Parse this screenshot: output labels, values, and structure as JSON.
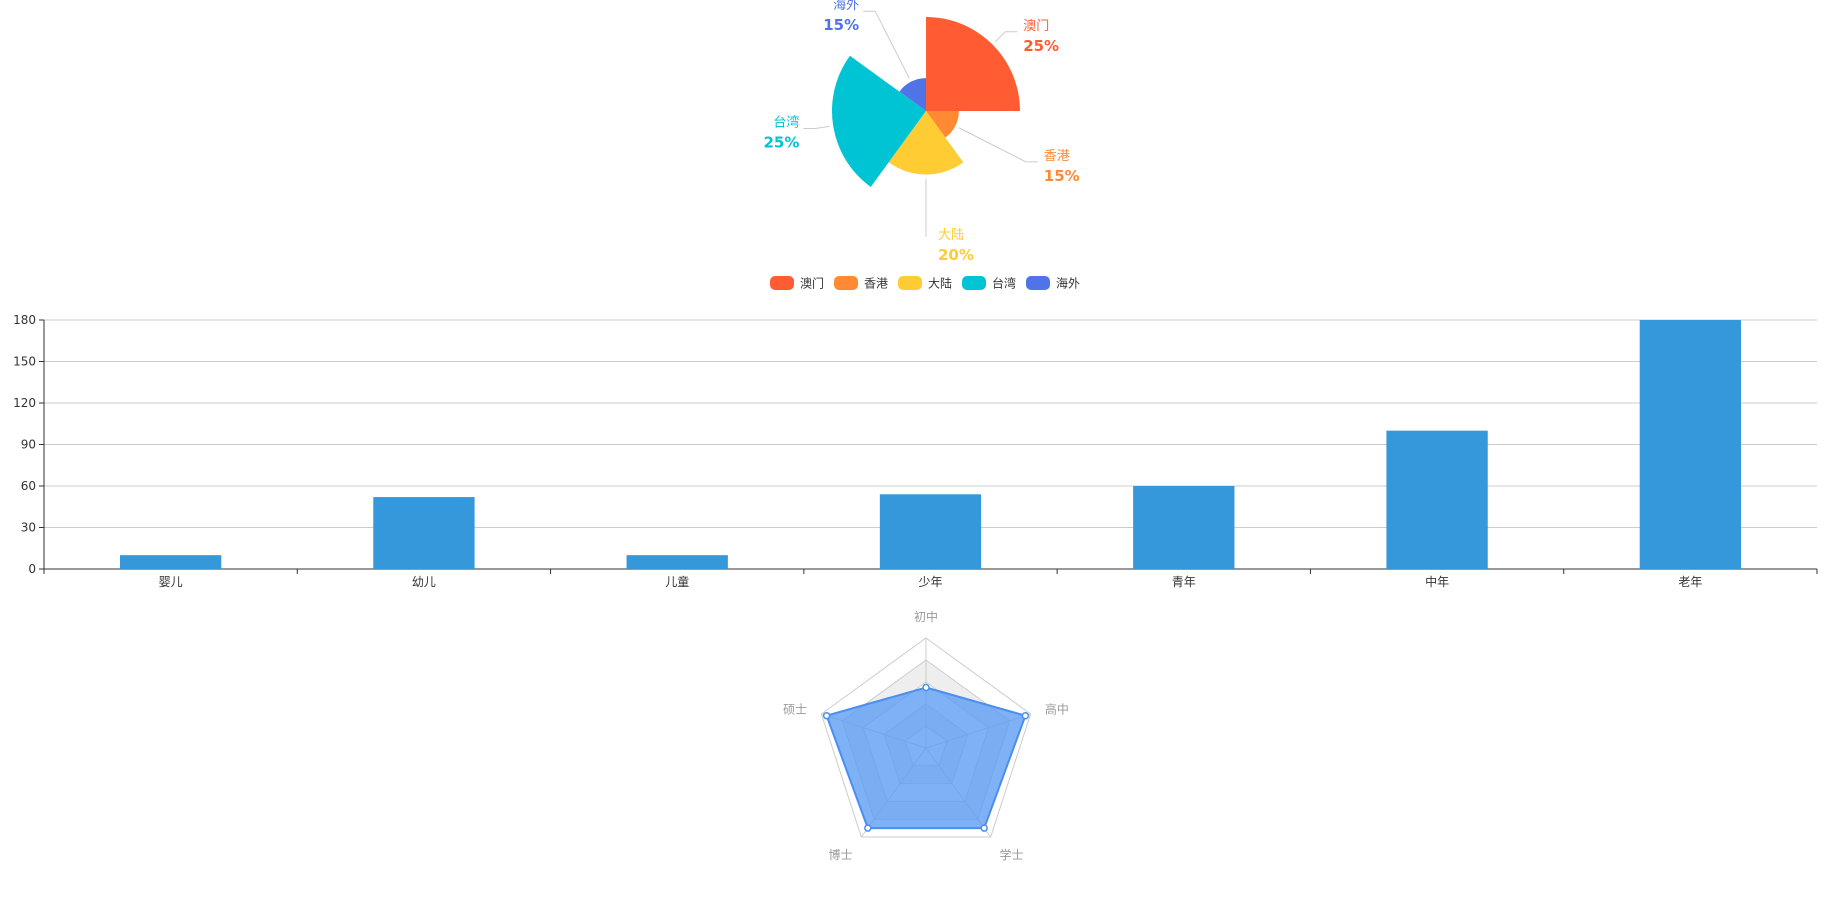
{
  "chart_data": [
    {
      "type": "pie",
      "variant": "rose",
      "legend_placement": "bottom",
      "slices": [
        {
          "name": "澳门",
          "value": 25,
          "label": "25%",
          "color": "#ff5c33"
        },
        {
          "name": "香港",
          "value": 15,
          "label": "15%",
          "color": "#ff8a33"
        },
        {
          "name": "大陆",
          "value": 20,
          "label": "20%",
          "color": "#ffcc33"
        },
        {
          "name": "台湾",
          "value": 25,
          "label": "25%",
          "color": "#00c4d4"
        },
        {
          "name": "海外",
          "value": 15,
          "label": "15%",
          "color": "#5074e8"
        }
      ]
    },
    {
      "type": "bar",
      "categories": [
        "婴儿",
        "幼儿",
        "儿童",
        "少年",
        "青年",
        "中年",
        "老年"
      ],
      "values": [
        10,
        52,
        10,
        54,
        60,
        100,
        180
      ],
      "ylim": [
        0,
        180
      ],
      "yticks": [
        "0",
        "30",
        "60",
        "90",
        "120",
        "150",
        "180"
      ],
      "grid": true,
      "color": "#3498db"
    },
    {
      "type": "radar",
      "indicators": [
        "初中",
        "高中",
        "学士",
        "博士",
        "硕士"
      ],
      "values": [
        0.55,
        0.95,
        0.9,
        0.9,
        0.95
      ],
      "max": 1,
      "color": "#5b9bf5"
    }
  ]
}
